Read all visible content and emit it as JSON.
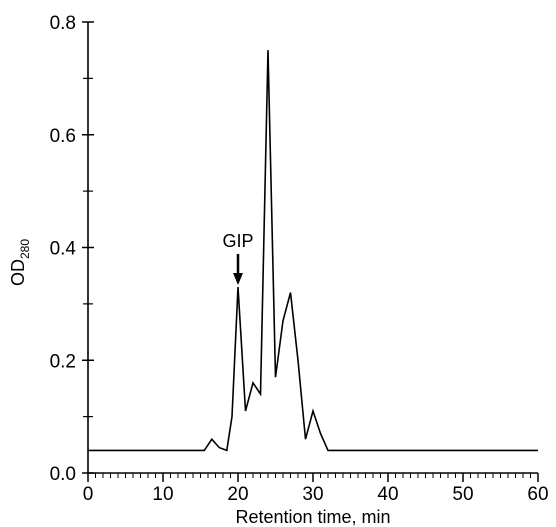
{
  "chart_data": {
    "type": "line",
    "title": "",
    "xlabel": "Retention time, min",
    "ylabel_main": "OD",
    "ylabel_sub": "280",
    "xlim": [
      0,
      60
    ],
    "ylim": [
      0,
      0.8
    ],
    "x_ticks": [
      0,
      10,
      20,
      30,
      40,
      50,
      60
    ],
    "x_tick_labels": [
      "0",
      "10",
      "20",
      "30",
      "40",
      "50",
      "60"
    ],
    "y_ticks": [
      0,
      0.2,
      0.4,
      0.6,
      0.8
    ],
    "y_tick_labels": [
      "0.0",
      "0.2",
      "0.4",
      "0.6",
      "0.8"
    ],
    "grid": false,
    "line_color": "#000000",
    "series": [
      {
        "x": [
          0,
          2,
          4,
          6,
          8,
          10,
          12,
          14,
          15.5,
          16.5,
          17.5,
          18.5,
          19.2,
          20,
          21,
          22,
          23,
          24,
          25,
          26,
          27,
          28,
          29,
          30,
          31,
          32,
          34,
          36,
          40,
          45,
          50,
          55,
          60
        ],
        "y": [
          0.04,
          0.04,
          0.04,
          0.04,
          0.04,
          0.04,
          0.04,
          0.04,
          0.04,
          0.06,
          0.045,
          0.04,
          0.1,
          0.33,
          0.11,
          0.16,
          0.14,
          0.75,
          0.17,
          0.27,
          0.32,
          0.2,
          0.06,
          0.11,
          0.07,
          0.04,
          0.04,
          0.04,
          0.04,
          0.04,
          0.04,
          0.04,
          0.04
        ]
      }
    ],
    "annotations": [
      {
        "text": "GIP",
        "x": 20,
        "y": 0.33,
        "arrow": "down"
      }
    ]
  }
}
